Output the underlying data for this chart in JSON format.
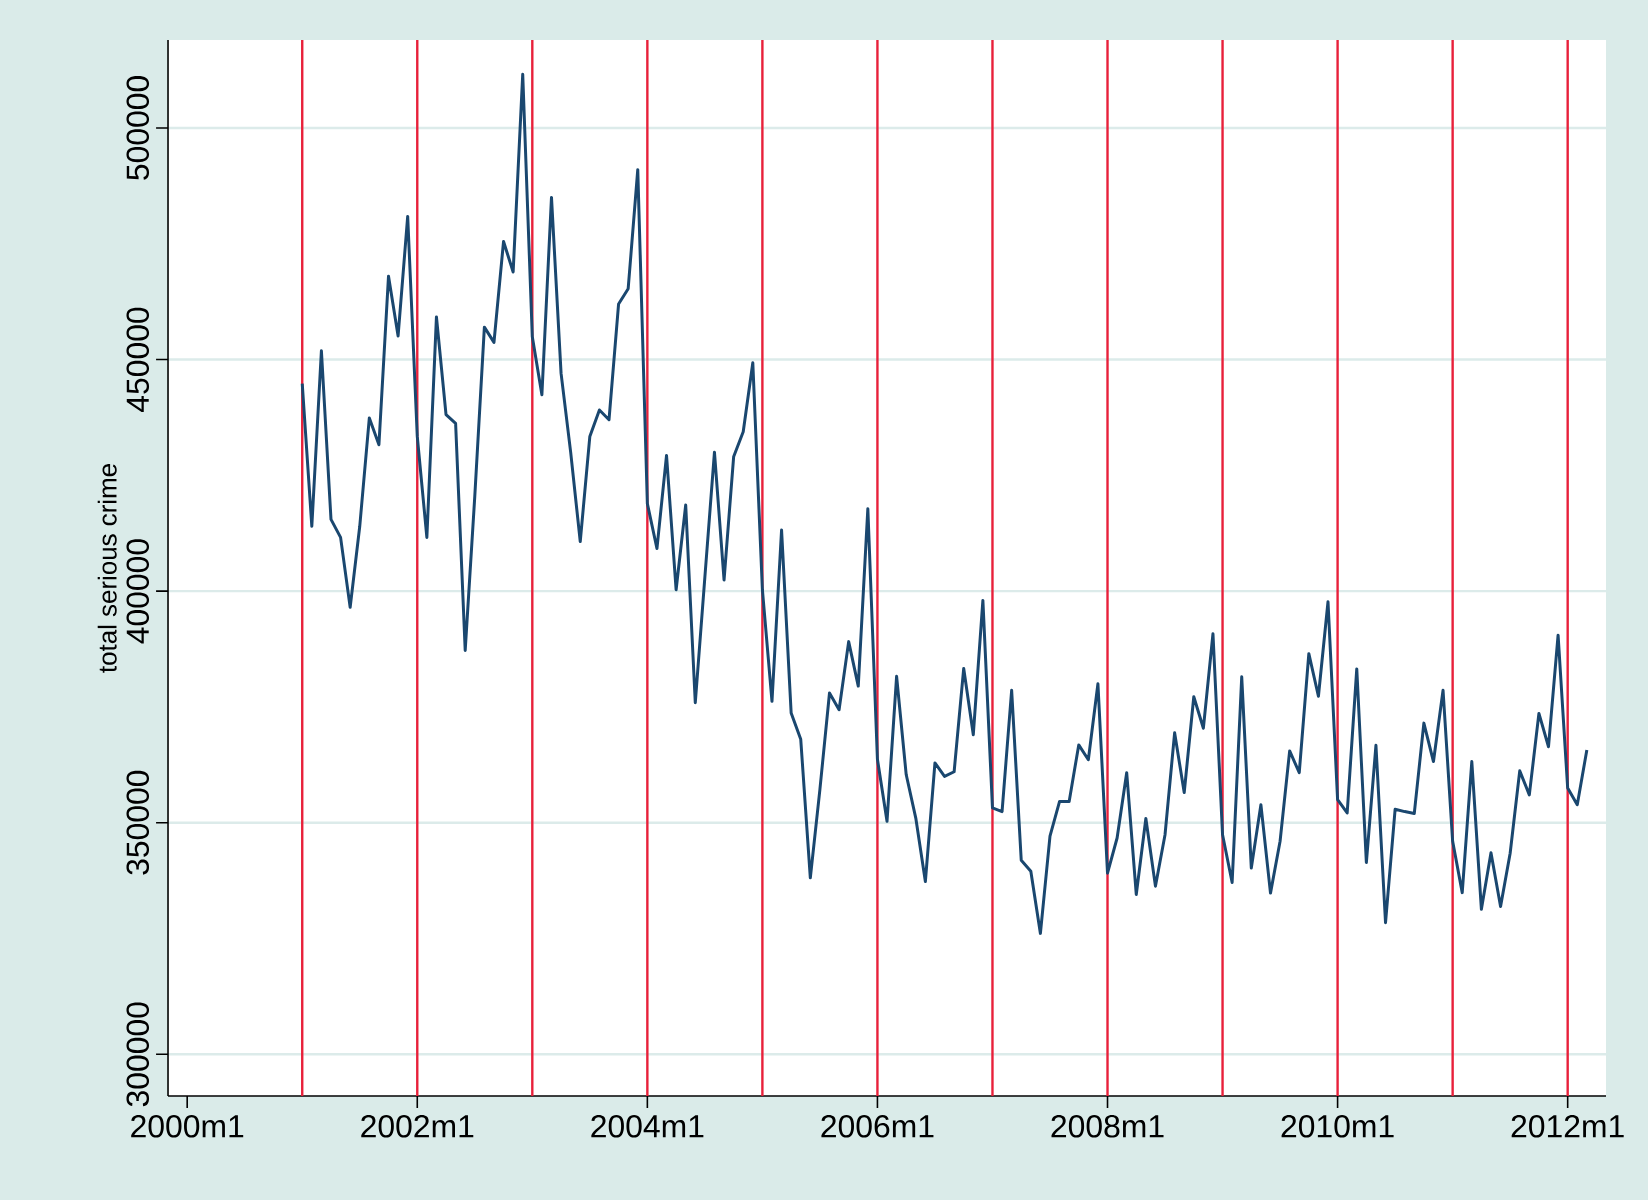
{
  "chart_data": {
    "type": "line",
    "ylabel": "total serious crime",
    "x": [
      "2001-01",
      "2001-02",
      "2001-03",
      "2001-04",
      "2001-05",
      "2001-06",
      "2001-07",
      "2001-08",
      "2001-09",
      "2001-10",
      "2001-11",
      "2001-12",
      "2002-01",
      "2002-02",
      "2002-03",
      "2002-04",
      "2002-05",
      "2002-06",
      "2002-07",
      "2002-08",
      "2002-09",
      "2002-10",
      "2002-11",
      "2002-12",
      "2003-01",
      "2003-02",
      "2003-03",
      "2003-04",
      "2003-05",
      "2003-06",
      "2003-07",
      "2003-08",
      "2003-09",
      "2003-10",
      "2003-11",
      "2003-12",
      "2004-01",
      "2004-02",
      "2004-03",
      "2004-04",
      "2004-05",
      "2004-06",
      "2004-07",
      "2004-08",
      "2004-09",
      "2004-10",
      "2004-11",
      "2004-12",
      "2005-01",
      "2005-02",
      "2005-03",
      "2005-04",
      "2005-05",
      "2005-06",
      "2005-07",
      "2005-08",
      "2005-09",
      "2005-10",
      "2005-11",
      "2005-12",
      "2006-01",
      "2006-02",
      "2006-03",
      "2006-04",
      "2006-05",
      "2006-06",
      "2006-07",
      "2006-08",
      "2006-09",
      "2006-10",
      "2006-11",
      "2006-12",
      "2007-01",
      "2007-02",
      "2007-03",
      "2007-04",
      "2007-05",
      "2007-06",
      "2007-07",
      "2007-08",
      "2007-09",
      "2007-10",
      "2007-11",
      "2007-12",
      "2008-01",
      "2008-02",
      "2008-03",
      "2008-04",
      "2008-05",
      "2008-06",
      "2008-07",
      "2008-08",
      "2008-09",
      "2008-10",
      "2008-11",
      "2008-12",
      "2009-01",
      "2009-02",
      "2009-03",
      "2009-04",
      "2009-05",
      "2009-06",
      "2009-07",
      "2009-08",
      "2009-09",
      "2009-10",
      "2009-11",
      "2009-12",
      "2010-01",
      "2010-02",
      "2010-03",
      "2010-04",
      "2010-05",
      "2010-06",
      "2010-07",
      "2010-08",
      "2010-09",
      "2010-10",
      "2010-11",
      "2010-12",
      "2011-01",
      "2011-02",
      "2011-03",
      "2011-04",
      "2011-05",
      "2011-06",
      "2011-07",
      "2011-08",
      "2011-09",
      "2011-10",
      "2011-11",
      "2011-12",
      "2012-01",
      "2012-02",
      "2012-03"
    ],
    "series": [
      {
        "color": "#1a476f",
        "values": [
          444800,
          414000,
          451900,
          415500,
          411600,
          396500,
          414000,
          437400,
          431600,
          468000,
          455100,
          480900,
          433400,
          411600,
          459200,
          438100,
          436200,
          387200,
          420500,
          457000,
          453700,
          475500,
          468900,
          511600,
          454900,
          442400,
          485000,
          447000,
          430000,
          410700,
          433400,
          439100,
          437000,
          462000,
          465300,
          491000,
          418900,
          409200,
          429300,
          400300,
          418600,
          375900,
          403000,
          430000,
          402400,
          429000,
          434400,
          449300,
          400300,
          376200,
          413200,
          373700,
          368000,
          338100,
          357200,
          378000,
          374400,
          389100,
          379500,
          417800,
          363700,
          350300,
          381600,
          360400,
          351000,
          337300,
          362900,
          360000,
          361000,
          383300,
          369000,
          398000,
          353200,
          352400,
          378600,
          341900,
          339500,
          326100,
          347100,
          354600,
          354600,
          366800,
          363600,
          380000,
          339100,
          346700,
          360800,
          334500,
          350900,
          336300,
          347400,
          369400,
          356500,
          377200,
          370400,
          390800,
          347400,
          337100,
          381500,
          340200,
          353900,
          334800,
          346000,
          365500,
          360800,
          386500,
          377300,
          397700,
          355000,
          352100,
          383200,
          341400,
          366700,
          328400,
          352900,
          352400,
          352000,
          371500,
          363200,
          378600,
          346000,
          334900,
          363200,
          331300,
          343500,
          331900,
          343400,
          361200,
          356000,
          373600,
          366400,
          390500,
          357500,
          353900,
          365700
        ]
      }
    ],
    "xlim": [
      "1999-11",
      "2012-05"
    ],
    "xticks": [
      {
        "value": "2000-01",
        "label": "2000m1"
      },
      {
        "value": "2002-01",
        "label": "2002m1"
      },
      {
        "value": "2004-01",
        "label": "2004m1"
      },
      {
        "value": "2006-01",
        "label": "2006m1"
      },
      {
        "value": "2008-01",
        "label": "2008m1"
      },
      {
        "value": "2010-01",
        "label": "2010m1"
      },
      {
        "value": "2012-01",
        "label": "2012m1"
      }
    ],
    "ylim": [
      291000,
      519000
    ],
    "yticks": [
      300000,
      350000,
      400000,
      450000,
      500000
    ],
    "grid": "y",
    "ref_lines": [
      {
        "axis": "x",
        "value": "2001-01",
        "color": "#e8203a"
      },
      {
        "axis": "x",
        "value": "2002-01",
        "color": "#e8203a"
      },
      {
        "axis": "x",
        "value": "2003-01",
        "color": "#e8203a"
      },
      {
        "axis": "x",
        "value": "2004-01",
        "color": "#e8203a"
      },
      {
        "axis": "x",
        "value": "2005-01",
        "color": "#e8203a"
      },
      {
        "axis": "x",
        "value": "2006-01",
        "color": "#e8203a"
      },
      {
        "axis": "x",
        "value": "2007-01",
        "color": "#e8203a"
      },
      {
        "axis": "x",
        "value": "2008-01",
        "color": "#e8203a"
      },
      {
        "axis": "x",
        "value": "2009-01",
        "color": "#e8203a"
      },
      {
        "axis": "x",
        "value": "2010-01",
        "color": "#e8203a"
      },
      {
        "axis": "x",
        "value": "2011-01",
        "color": "#e8203a"
      },
      {
        "axis": "x",
        "value": "2012-01",
        "color": "#e8203a"
      }
    ]
  }
}
